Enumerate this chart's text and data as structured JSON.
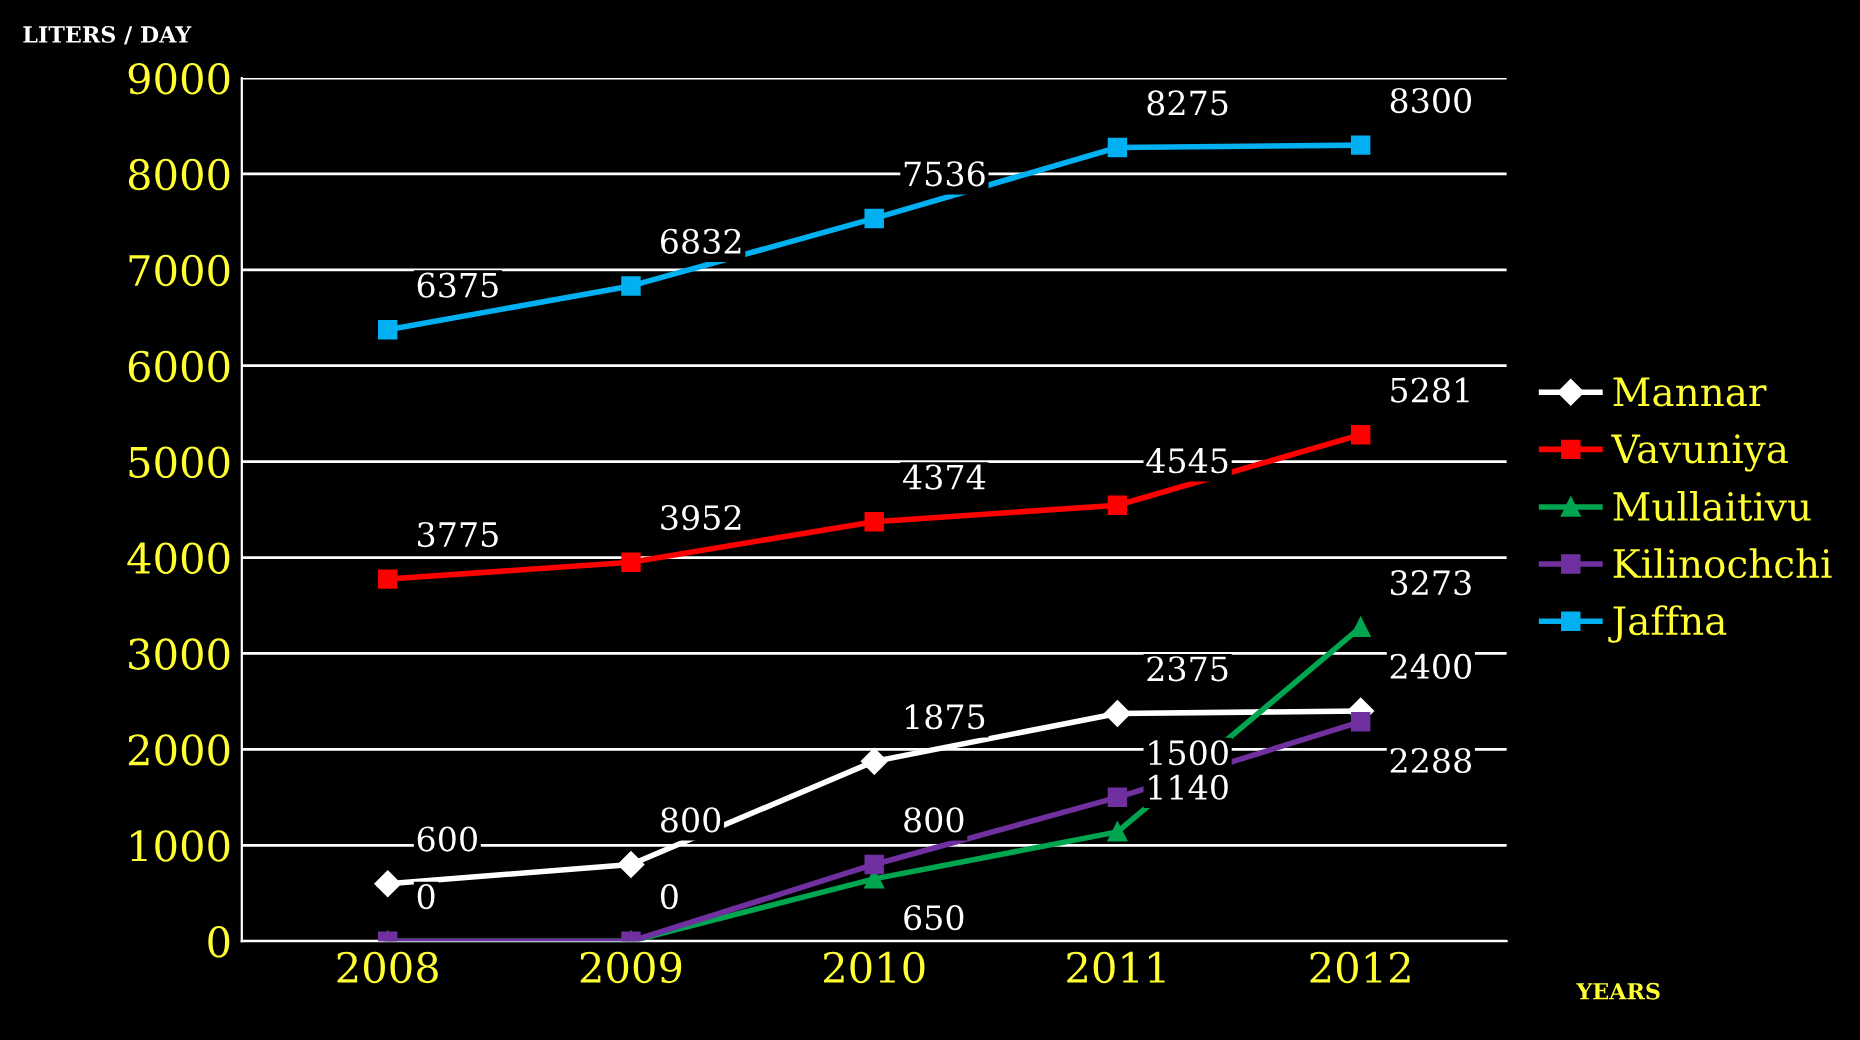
{
  "chart_data": {
    "type": "line",
    "categories": [
      "2008",
      "2009",
      "2010",
      "2011",
      "2012"
    ],
    "ylabel": "LITERS / DAY",
    "xlabel": "YEARS",
    "series": [
      {
        "name": "Mannar",
        "color": "#ffffff",
        "marker": "diamond",
        "values": [
          600,
          800,
          1875,
          2375,
          2400
        ],
        "value_labels": [
          "600",
          "800",
          "1875",
          "2375",
          "2400"
        ]
      },
      {
        "name": "Vavuniya",
        "color": "#ff0000",
        "marker": "square",
        "values": [
          3775,
          3952,
          4374,
          4545,
          5281
        ],
        "value_labels": [
          "3775",
          "3952",
          "4374",
          "4545",
          "5281"
        ]
      },
      {
        "name": "Mullaitivu",
        "color": "#00a550",
        "marker": "triangle",
        "values": [
          0,
          0,
          650,
          1140,
          3273
        ],
        "value_labels": [
          null,
          null,
          "650",
          "1140",
          "3273"
        ]
      },
      {
        "name": "Kilinochchi",
        "color": "#7030a0",
        "marker": "square",
        "values": [
          0,
          0,
          800,
          1500,
          2288
        ],
        "value_labels": [
          "0",
          "0",
          "800",
          "1500",
          "2288"
        ]
      },
      {
        "name": "Jaffna",
        "color": "#00b0f0",
        "marker": "square",
        "values": [
          6375,
          6832,
          7536,
          8275,
          8300
        ],
        "value_labels": [
          "6375",
          "6832",
          "7536",
          "8275",
          "8300"
        ]
      }
    ],
    "ylim": [
      0,
      9000
    ],
    "yticks": [
      0,
      1000,
      2000,
      3000,
      4000,
      5000,
      6000,
      7000,
      8000,
      9000
    ],
    "grid": "y",
    "legend": "right"
  }
}
